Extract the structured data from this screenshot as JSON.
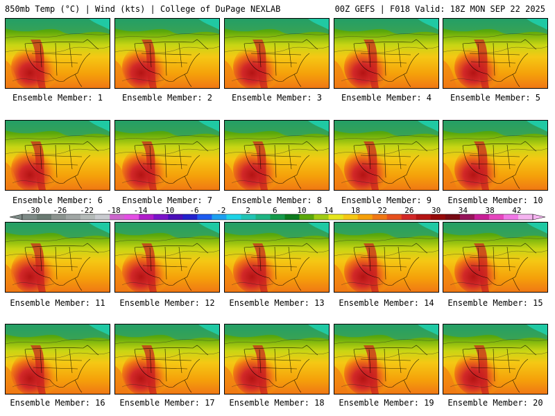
{
  "header": {
    "title_left": "850mb Temp (°C) | Wind (kts) | College of DuPage NEXLAB",
    "title_right": "00Z GEFS | F018 Valid: 18Z MON SEP 22 2025"
  },
  "panels": [
    {
      "caption": "Ensemble Member: 1"
    },
    {
      "caption": "Ensemble Member: 2"
    },
    {
      "caption": "Ensemble Member: 3"
    },
    {
      "caption": "Ensemble Member: 4"
    },
    {
      "caption": "Ensemble Member: 5"
    },
    {
      "caption": "Ensemble Member: 6"
    },
    {
      "caption": "Ensemble Member: 7"
    },
    {
      "caption": "Ensemble Member: 8"
    },
    {
      "caption": "Ensemble Member: 9"
    },
    {
      "caption": "Ensemble Member: 10"
    },
    {
      "caption": "Ensemble Member: 11"
    },
    {
      "caption": "Ensemble Member: 12"
    },
    {
      "caption": "Ensemble Member: 13"
    },
    {
      "caption": "Ensemble Member: 14"
    },
    {
      "caption": "Ensemble Member: 15"
    },
    {
      "caption": "Ensemble Member: 16"
    },
    {
      "caption": "Ensemble Member: 17"
    },
    {
      "caption": "Ensemble Member: 18"
    },
    {
      "caption": "Ensemble Member: 19"
    },
    {
      "caption": "Ensemble Member: 20"
    }
  ],
  "colorbar": {
    "labels": [
      "-30",
      "-26",
      "-22",
      "-18",
      "-14",
      "-10",
      "-6",
      "-2",
      "2",
      "6",
      "10",
      "14",
      "18",
      "22",
      "26",
      "30",
      "34",
      "38",
      "42"
    ],
    "colors": [
      "#7d8a86",
      "#6a7a72",
      "#8c948f",
      "#a0a6a4",
      "#b4bab8",
      "#c9cbd0",
      "#cc66cc",
      "#e34fe3",
      "#b01cc9",
      "#7a14c9",
      "#4b0fb8",
      "#2222cc",
      "#1e5cf0",
      "#1ea0f0",
      "#1ed3e6",
      "#22c4b4",
      "#1eb482",
      "#159a4b",
      "#0c7a1e",
      "#5aa80a",
      "#a0cc14",
      "#e6e61e",
      "#f5c814",
      "#f5a00a",
      "#f07814",
      "#e6501e",
      "#d22828",
      "#b41414",
      "#960a0a",
      "#780a14",
      "#96145a",
      "#c81e96",
      "#e646be",
      "#f078e6",
      "#f5b4f0"
    ]
  }
}
